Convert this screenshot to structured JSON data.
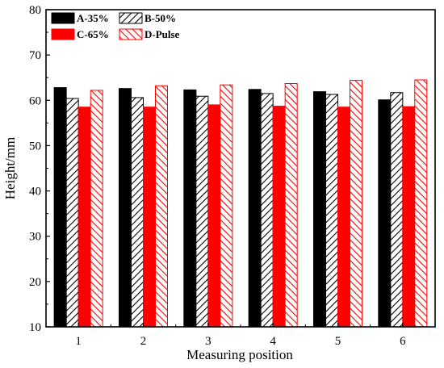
{
  "chart_data": {
    "type": "bar",
    "xlabel": "Measuring position",
    "ylabel": "Height/mm",
    "ylim": [
      10,
      80
    ],
    "yticks": [
      10,
      20,
      30,
      40,
      50,
      60,
      70,
      80
    ],
    "categories": [
      "1",
      "2",
      "3",
      "4",
      "5",
      "6"
    ],
    "legend_position": "top-left",
    "grid": false,
    "series": [
      {
        "name": "A-35%",
        "values": [
          62.8,
          62.6,
          62.3,
          62.4,
          61.9,
          60.1
        ],
        "color": "#000000",
        "pattern": "solid"
      },
      {
        "name": "B-50%",
        "values": [
          60.4,
          60.6,
          60.9,
          61.5,
          61.3,
          61.7
        ],
        "color": "#000000",
        "pattern": "hatch"
      },
      {
        "name": "C-65%",
        "values": [
          58.5,
          58.5,
          59.0,
          58.7,
          58.5,
          58.6
        ],
        "color": "#ff0000",
        "pattern": "solid"
      },
      {
        "name": "D-Pulse",
        "values": [
          62.2,
          63.2,
          63.4,
          63.7,
          64.4,
          64.5
        ],
        "color": "#ff0000",
        "pattern": "hatch"
      }
    ]
  }
}
